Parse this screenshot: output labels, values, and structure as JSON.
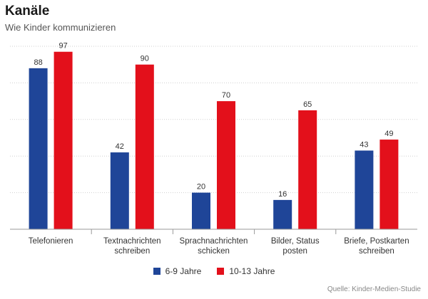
{
  "chart_data": {
    "type": "bar",
    "title": "Kanäle",
    "subtitle": "Wie Kinder kommunizieren",
    "categories": [
      [
        "Telefonieren"
      ],
      [
        "Textnachrichten",
        "schreiben"
      ],
      [
        "Sprachnachrichten",
        "schicken"
      ],
      [
        "Bilder, Status",
        "posten"
      ],
      [
        "Briefe, Postkarten",
        "schreiben"
      ]
    ],
    "series": [
      {
        "name": "6-9 Jahre",
        "color": "#1f4598",
        "values": [
          88,
          42,
          20,
          16,
          43
        ]
      },
      {
        "name": "10-13 Jahre",
        "color": "#e3101b",
        "values": [
          97,
          90,
          70,
          65,
          49
        ]
      }
    ],
    "ylim": [
      0,
      100
    ],
    "grid": true,
    "legend_position": "bottom",
    "source": "Quelle: Kinder-Medien-Studie"
  }
}
